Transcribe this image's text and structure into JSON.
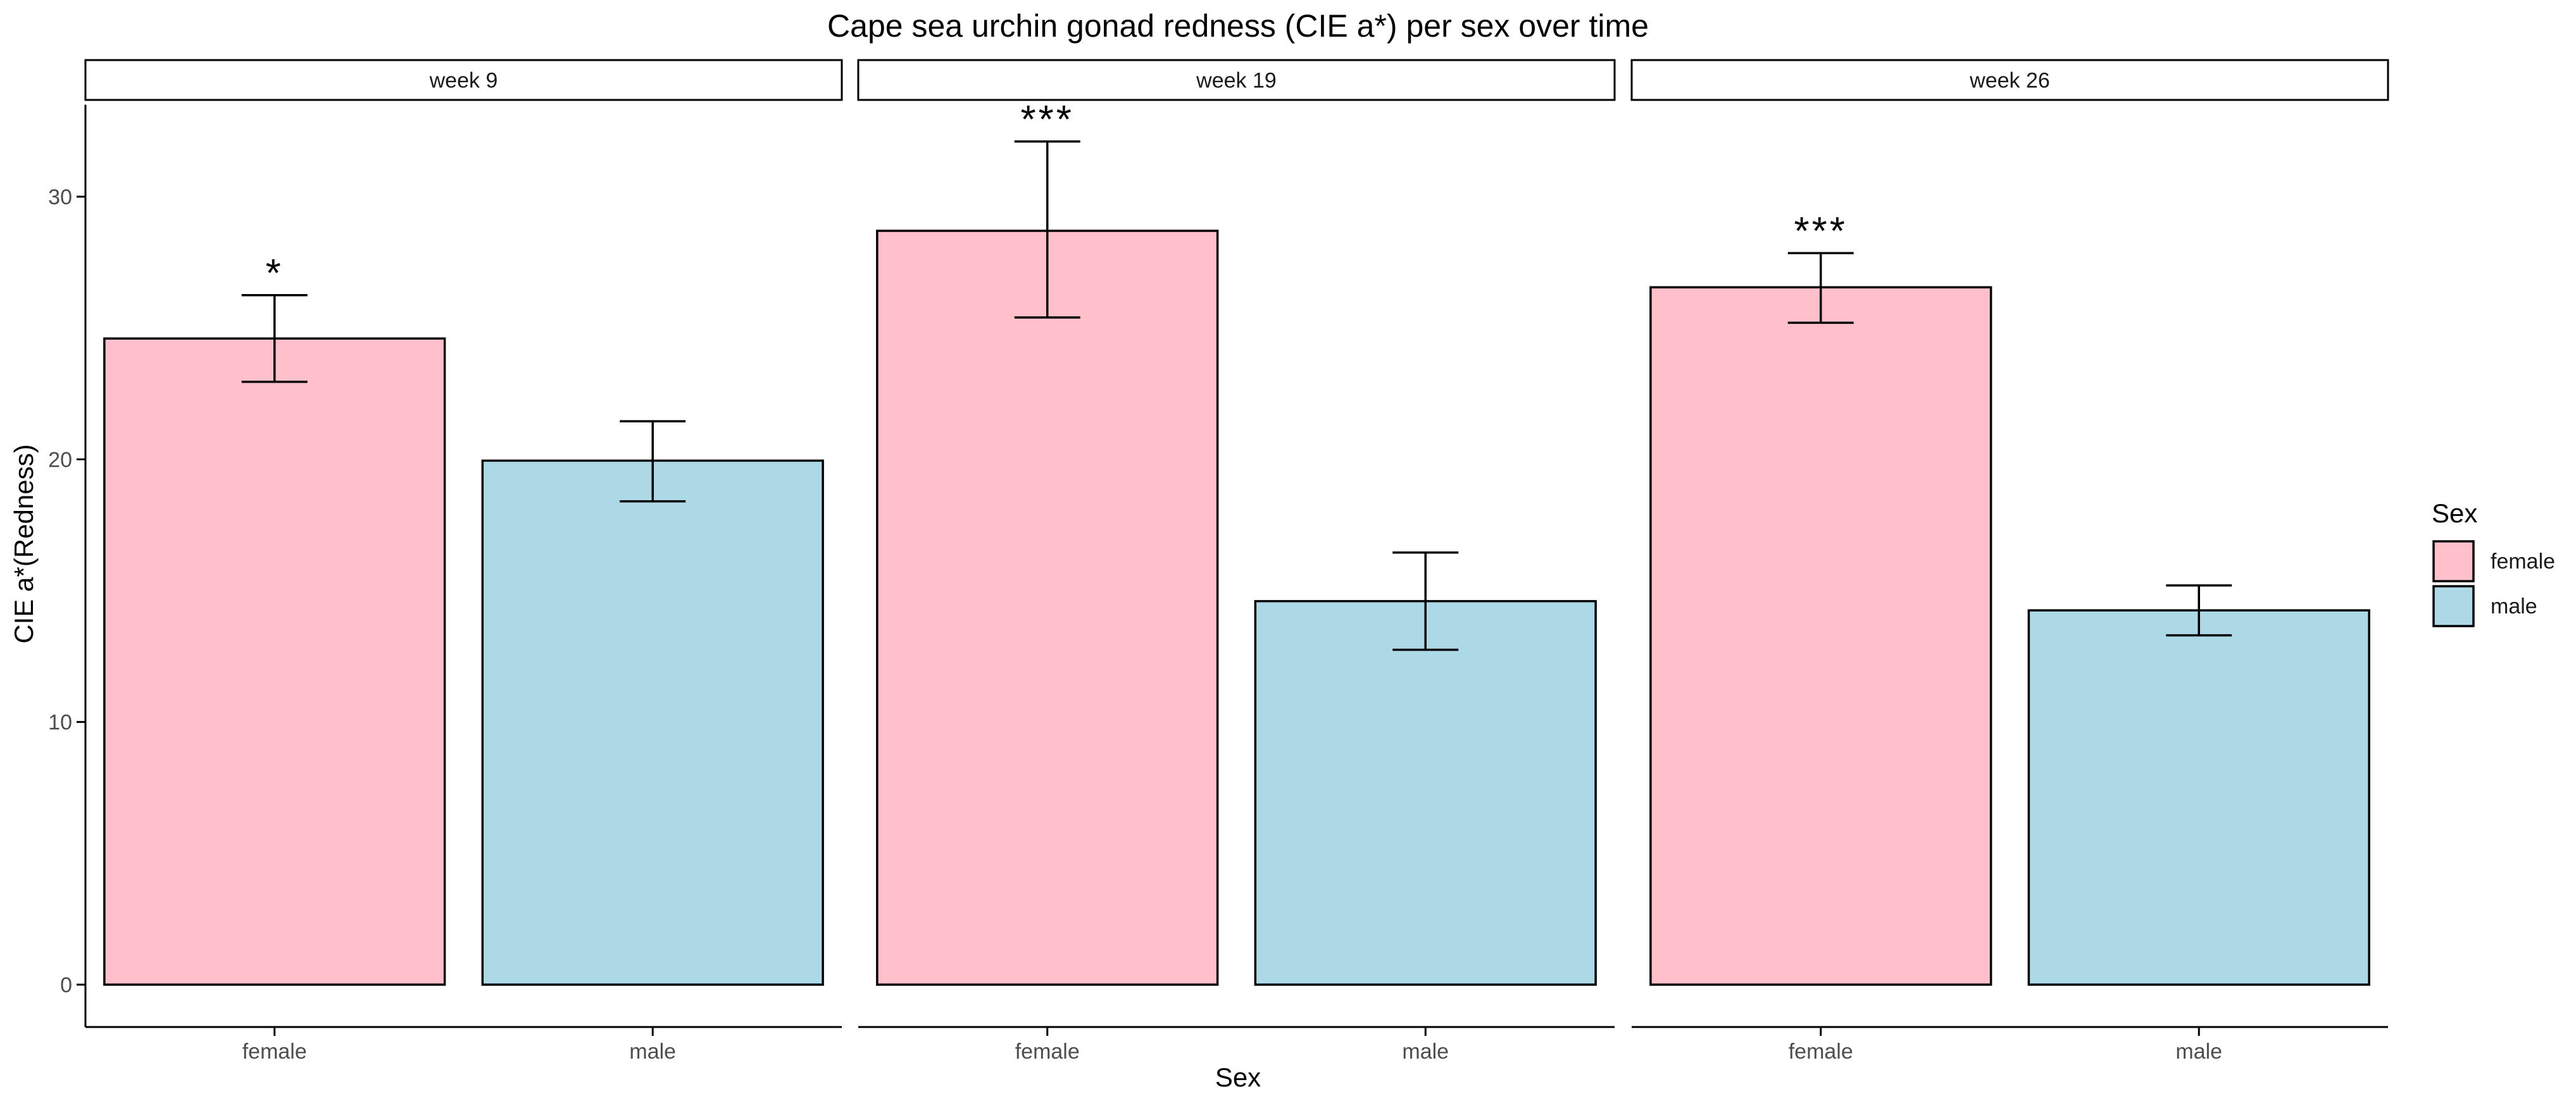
{
  "chart_data": {
    "type": "bar",
    "title": "Cape sea urchin gonad redness (CIE a*) per sex over time",
    "xlabel": "Sex",
    "ylabel": "CIE a*(Redness)",
    "ylim": [
      0,
      33.5
    ],
    "yticks": [
      0,
      10,
      20,
      30
    ],
    "grid": false,
    "categories": [
      "female",
      "male"
    ],
    "colors": {
      "female": "#ffc0cb",
      "male": "#add8e6"
    },
    "legend": {
      "title": "Sex",
      "position": "right",
      "items": [
        "female",
        "male"
      ]
    },
    "facets": [
      {
        "label": "week 9",
        "values": [
          24.6,
          19.95
        ],
        "errors": [
          [
            22.95,
            26.25
          ],
          [
            18.4,
            21.45
          ]
        ],
        "annotations": [
          "*",
          ""
        ]
      },
      {
        "label": "week 19",
        "values": [
          28.7,
          14.6
        ],
        "errors": [
          [
            25.4,
            32.1
          ],
          [
            12.75,
            16.45
          ]
        ],
        "annotations": [
          "***",
          ""
        ]
      },
      {
        "label": "week 26",
        "values": [
          26.55,
          14.25
        ],
        "errors": [
          [
            25.2,
            27.85
          ],
          [
            13.3,
            15.2
          ]
        ],
        "annotations": [
          "***",
          ""
        ]
      }
    ]
  }
}
